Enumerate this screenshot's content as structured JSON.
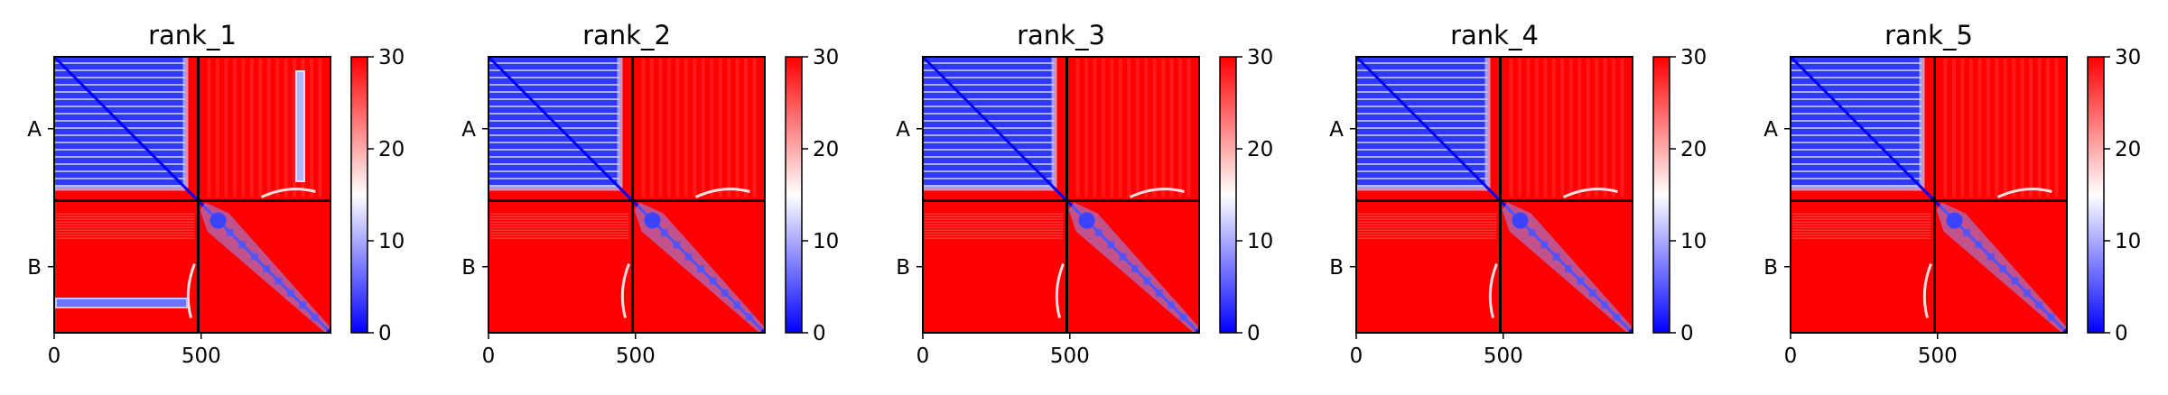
{
  "figure": {
    "background": "#ffffff",
    "colormap": [
      "#0000ff",
      "#ffffff",
      "#ff0000"
    ]
  },
  "chart_data": [
    {
      "type": "heatmap",
      "title": "rank_1",
      "xlabel": "",
      "ylabel": "",
      "x_ticks": [
        0,
        500
      ],
      "x_range": [
        0,
        940
      ],
      "chain_labels": [
        "A",
        "B"
      ],
      "chain_boundary": 490,
      "color_range": [
        0,
        30
      ],
      "colorbar_ticks": [
        0,
        10,
        20,
        30
      ],
      "features": [
        "chain A intra-chain low error block",
        "chain B diagonal band low error",
        "off-diagonal low-error stripe in lower-left at B rows ~800",
        "off-diagonal low-error stripe in upper-right at A columns ~830"
      ]
    },
    {
      "type": "heatmap",
      "title": "rank_2",
      "xlabel": "",
      "ylabel": "",
      "x_ticks": [
        0,
        500
      ],
      "x_range": [
        0,
        940
      ],
      "chain_labels": [
        "A",
        "B"
      ],
      "chain_boundary": 490,
      "color_range": [
        0,
        30
      ],
      "colorbar_ticks": [
        0,
        10,
        20,
        30
      ],
      "features": [
        "chain A intra-chain low error block",
        "chain B diagonal band low error"
      ]
    },
    {
      "type": "heatmap",
      "title": "rank_3",
      "xlabel": "",
      "ylabel": "",
      "x_ticks": [
        0,
        500
      ],
      "x_range": [
        0,
        940
      ],
      "chain_labels": [
        "A",
        "B"
      ],
      "chain_boundary": 490,
      "color_range": [
        0,
        30
      ],
      "colorbar_ticks": [
        0,
        10,
        20,
        30
      ],
      "features": [
        "chain A intra-chain low error block",
        "chain B diagonal band low error"
      ]
    },
    {
      "type": "heatmap",
      "title": "rank_4",
      "xlabel": "",
      "ylabel": "",
      "x_ticks": [
        0,
        500
      ],
      "x_range": [
        0,
        940
      ],
      "chain_labels": [
        "A",
        "B"
      ],
      "chain_boundary": 490,
      "color_range": [
        0,
        30
      ],
      "colorbar_ticks": [
        0,
        10,
        20,
        30
      ],
      "features": [
        "chain A intra-chain low error block",
        "chain B diagonal band low error"
      ]
    },
    {
      "type": "heatmap",
      "title": "rank_5",
      "xlabel": "",
      "ylabel": "",
      "x_ticks": [
        0,
        500
      ],
      "x_range": [
        0,
        940
      ],
      "chain_labels": [
        "A",
        "B"
      ],
      "chain_boundary": 490,
      "color_range": [
        0,
        30
      ],
      "colorbar_ticks": [
        0,
        10,
        20,
        30
      ],
      "features": [
        "chain A intra-chain low error block",
        "chain B diagonal band low error"
      ]
    }
  ]
}
